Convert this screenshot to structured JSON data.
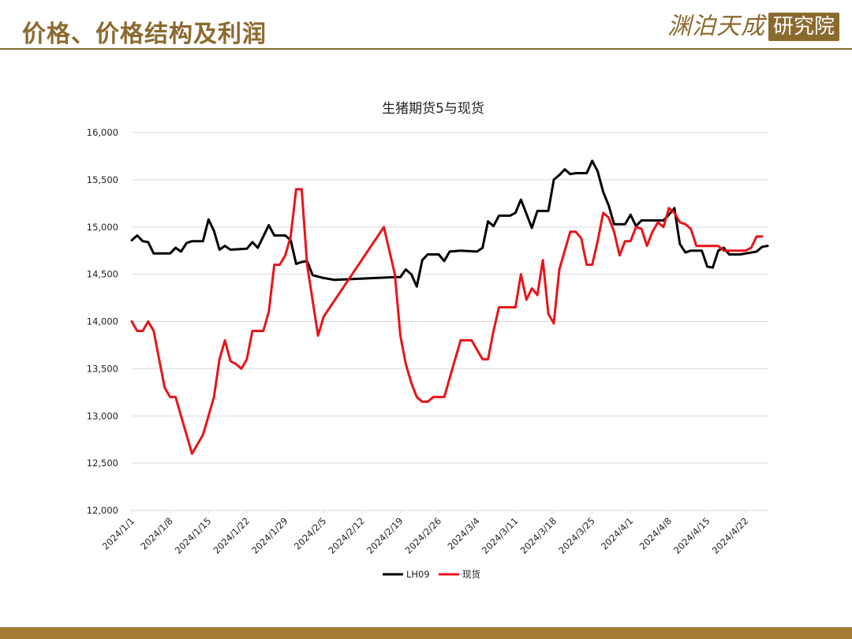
{
  "header": {
    "title": "价格、价格结构及利润"
  },
  "logo": {
    "text": "渊泊天成",
    "seal": "研究院"
  },
  "colors": {
    "accent": "#8B6A2E",
    "footer": "#A57C35",
    "lh09": "#000000",
    "spot": "#E8141A"
  },
  "chart_data": {
    "type": "line",
    "title": "生猪期货5与现货",
    "xlabel": "",
    "ylabel": "",
    "ylim": [
      12000,
      16000
    ],
    "yticks": [
      12000,
      12500,
      13000,
      13500,
      14000,
      14500,
      15000,
      15500,
      16000
    ],
    "ytick_labels": [
      "12,000",
      "12,500",
      "13,000",
      "13,500",
      "14,000",
      "14,500",
      "15,000",
      "15,500",
      "16,000"
    ],
    "xlim": [
      "2024/1/1",
      "2024/4/26"
    ],
    "xtick_labels": [
      "2024/1/1",
      "2024/1/8",
      "2024/1/15",
      "2024/1/22",
      "2024/1/29",
      "2024/2/5",
      "2024/2/12",
      "2024/2/19",
      "2024/2/26",
      "2024/3/4",
      "2024/3/11",
      "2024/3/18",
      "2024/3/25",
      "2024/4/1",
      "2024/4/8",
      "2024/4/15",
      "2024/4/22"
    ],
    "grid": "horizontal",
    "legend_position": "bottom-center",
    "series": [
      {
        "name": "LH09",
        "color": "#000000",
        "points": [
          [
            "2024/1/1",
            14860
          ],
          [
            "2024/1/2",
            14910
          ],
          [
            "2024/1/3",
            14850
          ],
          [
            "2024/1/4",
            14840
          ],
          [
            "2024/1/5",
            14720
          ],
          [
            "2024/1/8",
            14720
          ],
          [
            "2024/1/9",
            14780
          ],
          [
            "2024/1/10",
            14740
          ],
          [
            "2024/1/11",
            14830
          ],
          [
            "2024/1/12",
            14850
          ],
          [
            "2024/1/14",
            14850
          ],
          [
            "2024/1/15",
            15080
          ],
          [
            "2024/1/16",
            14960
          ],
          [
            "2024/1/17",
            14760
          ],
          [
            "2024/1/18",
            14800
          ],
          [
            "2024/1/19",
            14760
          ],
          [
            "2024/1/22",
            14770
          ],
          [
            "2024/1/23",
            14840
          ],
          [
            "2024/1/24",
            14780
          ],
          [
            "2024/1/25",
            14900
          ],
          [
            "2024/1/26",
            15020
          ],
          [
            "2024/1/27",
            14910
          ],
          [
            "2024/1/29",
            14910
          ],
          [
            "2024/1/30",
            14860
          ],
          [
            "2024/1/31",
            14610
          ],
          [
            "2024/2/1",
            14630
          ],
          [
            "2024/2/2",
            14640
          ],
          [
            "2024/2/3",
            14490
          ],
          [
            "2024/2/5",
            14460
          ],
          [
            "2024/2/7",
            14440
          ],
          [
            "2024/2/18",
            14470
          ],
          [
            "2024/2/19",
            14470
          ],
          [
            "2024/2/20",
            14550
          ],
          [
            "2024/2/21",
            14500
          ],
          [
            "2024/2/22",
            14370
          ],
          [
            "2024/2/23",
            14650
          ],
          [
            "2024/2/24",
            14710
          ],
          [
            "2024/2/26",
            14710
          ],
          [
            "2024/2/27",
            14640
          ],
          [
            "2024/2/28",
            14740
          ],
          [
            "2024/3/1",
            14750
          ],
          [
            "2024/3/4",
            14740
          ],
          [
            "2024/3/5",
            14780
          ],
          [
            "2024/3/6",
            15060
          ],
          [
            "2024/3/7",
            15010
          ],
          [
            "2024/3/8",
            15120
          ],
          [
            "2024/3/10",
            15120
          ],
          [
            "2024/3/11",
            15150
          ],
          [
            "2024/3/12",
            15290
          ],
          [
            "2024/3/13",
            15140
          ],
          [
            "2024/3/14",
            14990
          ],
          [
            "2024/3/15",
            15170
          ],
          [
            "2024/3/17",
            15170
          ],
          [
            "2024/3/18",
            15500
          ],
          [
            "2024/3/19",
            15550
          ],
          [
            "2024/3/20",
            15610
          ],
          [
            "2024/3/21",
            15560
          ],
          [
            "2024/3/22",
            15570
          ],
          [
            "2024/3/24",
            15570
          ],
          [
            "2024/3/25",
            15700
          ],
          [
            "2024/3/26",
            15590
          ],
          [
            "2024/3/27",
            15370
          ],
          [
            "2024/3/28",
            15230
          ],
          [
            "2024/3/29",
            15030
          ],
          [
            "2024/3/31",
            15030
          ],
          [
            "2024/4/1",
            15130
          ],
          [
            "2024/4/2",
            15010
          ],
          [
            "2024/4/3",
            15070
          ],
          [
            "2024/4/7",
            15070
          ],
          [
            "2024/4/8",
            15130
          ],
          [
            "2024/4/9",
            15200
          ],
          [
            "2024/4/10",
            14820
          ],
          [
            "2024/4/11",
            14730
          ],
          [
            "2024/4/12",
            14750
          ],
          [
            "2024/4/14",
            14750
          ],
          [
            "2024/4/15",
            14580
          ],
          [
            "2024/4/16",
            14570
          ],
          [
            "2024/4/17",
            14750
          ],
          [
            "2024/4/18",
            14780
          ],
          [
            "2024/4/19",
            14710
          ],
          [
            "2024/4/21",
            14710
          ],
          [
            "2024/4/22",
            14720
          ],
          [
            "2024/4/23",
            14730
          ],
          [
            "2024/4/24",
            14740
          ],
          [
            "2024/4/25",
            14790
          ],
          [
            "2024/4/26",
            14800
          ]
        ]
      },
      {
        "name": "现货",
        "color": "#E8141A",
        "points": [
          [
            "2024/1/1",
            14000
          ],
          [
            "2024/1/2",
            13900
          ],
          [
            "2024/1/3",
            13900
          ],
          [
            "2024/1/4",
            14000
          ],
          [
            "2024/1/5",
            13900
          ],
          [
            "2024/1/6",
            13600
          ],
          [
            "2024/1/7",
            13300
          ],
          [
            "2024/1/8",
            13200
          ],
          [
            "2024/1/9",
            13200
          ],
          [
            "2024/1/10",
            13000
          ],
          [
            "2024/1/11",
            12800
          ],
          [
            "2024/1/12",
            12600
          ],
          [
            "2024/1/14",
            12800
          ],
          [
            "2024/1/15",
            13000
          ],
          [
            "2024/1/16",
            13200
          ],
          [
            "2024/1/17",
            13600
          ],
          [
            "2024/1/18",
            13800
          ],
          [
            "2024/1/19",
            13580
          ],
          [
            "2024/1/20",
            13550
          ],
          [
            "2024/1/21",
            13500
          ],
          [
            "2024/1/22",
            13600
          ],
          [
            "2024/1/23",
            13900
          ],
          [
            "2024/1/24",
            13900
          ],
          [
            "2024/1/25",
            13900
          ],
          [
            "2024/1/26",
            14100
          ],
          [
            "2024/1/27",
            14600
          ],
          [
            "2024/1/28",
            14600
          ],
          [
            "2024/1/29",
            14700
          ],
          [
            "2024/1/30",
            14900
          ],
          [
            "2024/1/31",
            15400
          ],
          [
            "2024/2/1",
            15400
          ],
          [
            "2024/2/2",
            14600
          ],
          [
            "2024/2/4",
            13850
          ],
          [
            "2024/2/5",
            14050
          ],
          [
            "2024/2/16",
            15000
          ],
          [
            "2024/2/18",
            14500
          ],
          [
            "2024/2/19",
            13850
          ],
          [
            "2024/2/20",
            13550
          ],
          [
            "2024/2/21",
            13350
          ],
          [
            "2024/2/22",
            13200
          ],
          [
            "2024/2/23",
            13150
          ],
          [
            "2024/2/24",
            13150
          ],
          [
            "2024/2/25",
            13200
          ],
          [
            "2024/2/27",
            13200
          ],
          [
            "2024/2/28",
            13400
          ],
          [
            "2024/2/29",
            13600
          ],
          [
            "2024/3/1",
            13800
          ],
          [
            "2024/3/3",
            13800
          ],
          [
            "2024/3/4",
            13700
          ],
          [
            "2024/3/5",
            13600
          ],
          [
            "2024/3/6",
            13600
          ],
          [
            "2024/3/7",
            13900
          ],
          [
            "2024/3/8",
            14150
          ],
          [
            "2024/3/10",
            14150
          ],
          [
            "2024/3/11",
            14150
          ],
          [
            "2024/3/12",
            14500
          ],
          [
            "2024/3/13",
            14230
          ],
          [
            "2024/3/14",
            14350
          ],
          [
            "2024/3/15",
            14280
          ],
          [
            "2024/3/16",
            14650
          ],
          [
            "2024/3/17",
            14080
          ],
          [
            "2024/3/18",
            13980
          ],
          [
            "2024/3/19",
            14550
          ],
          [
            "2024/3/20",
            14750
          ],
          [
            "2024/3/21",
            14950
          ],
          [
            "2024/3/22",
            14950
          ],
          [
            "2024/3/23",
            14880
          ],
          [
            "2024/3/24",
            14600
          ],
          [
            "2024/3/25",
            14600
          ],
          [
            "2024/3/26",
            14850
          ],
          [
            "2024/3/27",
            15150
          ],
          [
            "2024/3/28",
            15100
          ],
          [
            "2024/3/29",
            14950
          ],
          [
            "2024/3/30",
            14700
          ],
          [
            "2024/3/31",
            14850
          ],
          [
            "2024/4/1",
            14850
          ],
          [
            "2024/4/2",
            15000
          ],
          [
            "2024/4/3",
            14980
          ],
          [
            "2024/4/4",
            14800
          ],
          [
            "2024/4/5",
            14950
          ],
          [
            "2024/4/6",
            15050
          ],
          [
            "2024/4/7",
            15000
          ],
          [
            "2024/4/8",
            15200
          ],
          [
            "2024/4/9",
            15150
          ],
          [
            "2024/4/10",
            15050
          ],
          [
            "2024/4/11",
            15030
          ],
          [
            "2024/4/12",
            14980
          ],
          [
            "2024/4/13",
            14800
          ],
          [
            "2024/4/14",
            14800
          ],
          [
            "2024/4/17",
            14800
          ],
          [
            "2024/4/18",
            14750
          ],
          [
            "2024/4/19",
            14750
          ],
          [
            "2024/4/22",
            14750
          ],
          [
            "2024/4/23",
            14780
          ],
          [
            "2024/4/24",
            14900
          ],
          [
            "2024/4/25",
            14900
          ]
        ]
      }
    ]
  }
}
